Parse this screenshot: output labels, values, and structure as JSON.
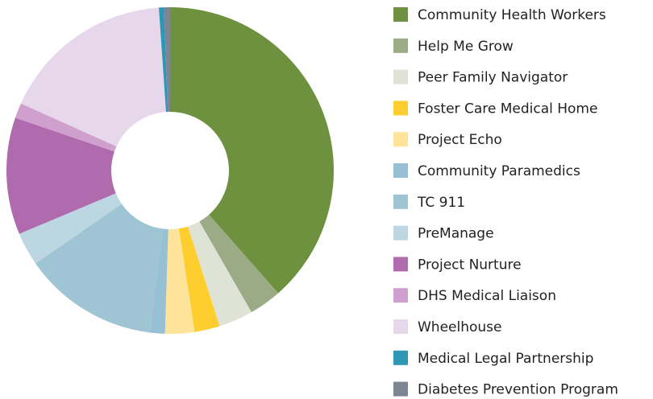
{
  "chart_data": {
    "type": "donut",
    "categories": [
      "Community Health Workers",
      "Help Me Grow",
      "Peer Family Navigator",
      "Foster Care Medical Home",
      "Project Echo",
      "Community Paramedics",
      "TC 911",
      "PreManage",
      "Project Nurture",
      "DHS Medical Liaison",
      "Wheelhouse",
      "Medical Legal Partnership",
      "Diabetes Prevention Program"
    ],
    "values": [
      38.6,
      3.2,
      3.4,
      2.5,
      2.9,
      1.5,
      13.4,
      3.3,
      11.6,
      1.5,
      17.2,
      0.5,
      0.6
    ],
    "colors": [
      "#6e9140",
      "#9bab86",
      "#dfe3d6",
      "#fdce2e",
      "#fde49a",
      "#97c0d4",
      "#9fc4d3",
      "#bcd7e2",
      "#b06bae",
      "#cfa0cd",
      "#e6d7ea",
      "#2e97b5",
      "#7d8593"
    ],
    "legend": "right"
  }
}
